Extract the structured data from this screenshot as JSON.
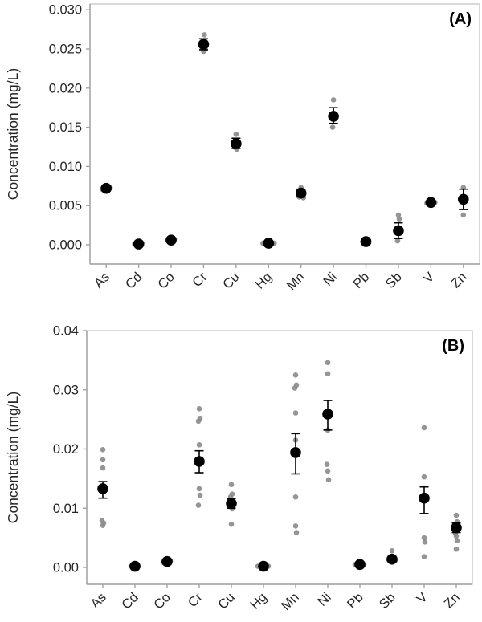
{
  "figure_background": "#ffffff",
  "colors": {
    "mean_marker": "#000000",
    "replicate_marker": "#8c8c8c",
    "axis_line": "#a3a3a3",
    "plot_border": "#c9c9c9",
    "tick_text": "#262626",
    "panel_label_text": "#000000"
  },
  "chart_data": [
    {
      "type": "scatter",
      "panel_label": "(A)",
      "title": "",
      "xlabel": "",
      "ylabel": "Concentration (mg/L)",
      "grid": false,
      "legend": "none",
      "ylim": [
        0,
        0.03
      ],
      "yticks": [
        0,
        0.005,
        0.01,
        0.015,
        0.02,
        0.025,
        0.03
      ],
      "ytick_labels": [
        "0.000",
        "0.005",
        "0.010",
        "0.015",
        "0.020",
        "0.025",
        "0.030"
      ],
      "categories": [
        "As",
        "Cd",
        "Co",
        "Cr",
        "Cu",
        "Hg",
        "Mn",
        "Ni",
        "Pb",
        "Sb",
        "V",
        "Zn"
      ],
      "means": [
        0.0072,
        0.0001,
        0.0006,
        0.0256,
        0.0129,
        0.0002,
        0.0066,
        0.0164,
        0.0004,
        0.0018,
        0.0054,
        0.0058
      ],
      "err_plus": [
        0,
        0,
        0,
        0.0007,
        0.0007,
        0,
        0.0005,
        0.0011,
        0,
        0.001,
        0,
        0.0013
      ],
      "err_minus": [
        0,
        0,
        0,
        0.0007,
        0.0006,
        0,
        0.0005,
        0.0009,
        0,
        0.001,
        0,
        0.0013
      ],
      "replicate_points": [
        [
          [
            -5,
            0.0071
          ],
          [
            5,
            0.0073
          ]
        ],
        [
          [
            -5,
            0.0001
          ],
          [
            4,
            0.0002
          ]
        ],
        [
          [
            -4,
            0.0006
          ],
          [
            4,
            0.0007
          ]
        ],
        [
          [
            1,
            0.0268
          ],
          [
            -2,
            0.0252
          ],
          [
            2,
            0.025
          ],
          [
            0,
            0.0247
          ]
        ],
        [
          [
            0,
            0.0141
          ],
          [
            -1,
            0.0124
          ],
          [
            1,
            0.0122
          ]
        ],
        [
          [
            -7,
            0.0002
          ],
          [
            7,
            0.0002
          ],
          [
            0,
            0.0001
          ]
        ],
        [
          [
            0,
            0.0073
          ],
          [
            -2,
            0.0061
          ],
          [
            3,
            0.006
          ]
        ],
        [
          [
            0,
            0.0185
          ],
          [
            -1,
            0.015
          ]
        ],
        [
          [
            -4,
            0.0004
          ],
          [
            3,
            0.0004
          ]
        ],
        [
          [
            0,
            0.0038
          ],
          [
            1,
            0.0033
          ],
          [
            -1,
            0.0005
          ]
        ],
        [
          [
            -5,
            0.0053
          ],
          [
            5,
            0.0054
          ]
        ],
        [
          [
            0,
            0.0073
          ],
          [
            0,
            0.0038
          ]
        ]
      ]
    },
    {
      "type": "scatter",
      "panel_label": "(B)",
      "title": "",
      "xlabel": "",
      "ylabel": "Concentration (mg/L)",
      "grid": false,
      "legend": "none",
      "ylim": [
        0,
        0.04
      ],
      "yticks": [
        0,
        0.01,
        0.02,
        0.03,
        0.04
      ],
      "ytick_labels": [
        "0.00",
        "0.01",
        "0.02",
        "0.03",
        "0.04"
      ],
      "categories": [
        "As",
        "Cd",
        "Co",
        "Cr",
        "Cu",
        "Hg",
        "Mn",
        "Ni",
        "Pb",
        "Sb",
        "V",
        "Zn"
      ],
      "means": [
        0.0133,
        0.0002,
        0.001,
        0.0179,
        0.0108,
        0.0002,
        0.0194,
        0.0259,
        0.0005,
        0.0014,
        0.0117,
        0.0067
      ],
      "err_plus": [
        0.0012,
        0,
        0,
        0.0018,
        0.0008,
        0,
        0.0032,
        0.0023,
        0,
        0.0004,
        0.0019,
        0.0008
      ],
      "err_minus": [
        0.0016,
        0,
        0,
        0.0019,
        0.0008,
        0,
        0.0036,
        0.0027,
        0,
        0.0004,
        0.0026,
        0.0008
      ],
      "replicate_points": [
        [
          [
            0,
            0.0199
          ],
          [
            0,
            0.0182
          ],
          [
            0,
            0.0168
          ],
          [
            -1,
            0.0079
          ],
          [
            1,
            0.0075
          ],
          [
            0,
            0.0071
          ]
        ],
        [
          [
            -5,
            0.0002
          ],
          [
            4,
            0.0002
          ]
        ],
        [
          [
            -5,
            0.0009
          ],
          [
            4,
            0.0011
          ]
        ],
        [
          [
            0,
            0.0268
          ],
          [
            1,
            0.0252
          ],
          [
            -1,
            0.0247
          ],
          [
            0,
            0.0207
          ],
          [
            0,
            0.0133
          ],
          [
            1,
            0.0122
          ],
          [
            -1,
            0.0105
          ]
        ],
        [
          [
            0,
            0.014
          ],
          [
            1,
            0.0124
          ],
          [
            -1,
            0.0119
          ],
          [
            0,
            0.0102
          ],
          [
            1,
            0.0099
          ],
          [
            0,
            0.0073
          ]
        ],
        [
          [
            -7,
            0.0002
          ],
          [
            6,
            0.0002
          ],
          [
            0,
            0.0001
          ]
        ],
        [
          [
            0,
            0.0325
          ],
          [
            1,
            0.0308
          ],
          [
            -1,
            0.0303
          ],
          [
            0,
            0.0261
          ],
          [
            0,
            0.0215
          ],
          [
            0,
            0.0119
          ],
          [
            0,
            0.007
          ],
          [
            1,
            0.0059
          ]
        ],
        [
          [
            0,
            0.0346
          ],
          [
            0,
            0.0327
          ],
          [
            0,
            0.0232
          ],
          [
            -1,
            0.0174
          ],
          [
            0,
            0.0163
          ],
          [
            1,
            0.0148
          ]
        ],
        [
          [
            -6,
            0.0005
          ],
          [
            5,
            0.0005
          ],
          [
            0,
            0.0003
          ]
        ],
        [
          [
            0,
            0.0028
          ],
          [
            -4,
            0.0013
          ],
          [
            4,
            0.0012
          ]
        ],
        [
          [
            0,
            0.0236
          ],
          [
            0,
            0.0153
          ],
          [
            0,
            0.005
          ],
          [
            1,
            0.0043
          ],
          [
            0,
            0.0018
          ]
        ],
        [
          [
            0,
            0.0088
          ],
          [
            1,
            0.0077
          ],
          [
            -1,
            0.0057
          ],
          [
            0,
            0.0053
          ],
          [
            1,
            0.0045
          ],
          [
            0,
            0.0031
          ]
        ]
      ]
    }
  ]
}
